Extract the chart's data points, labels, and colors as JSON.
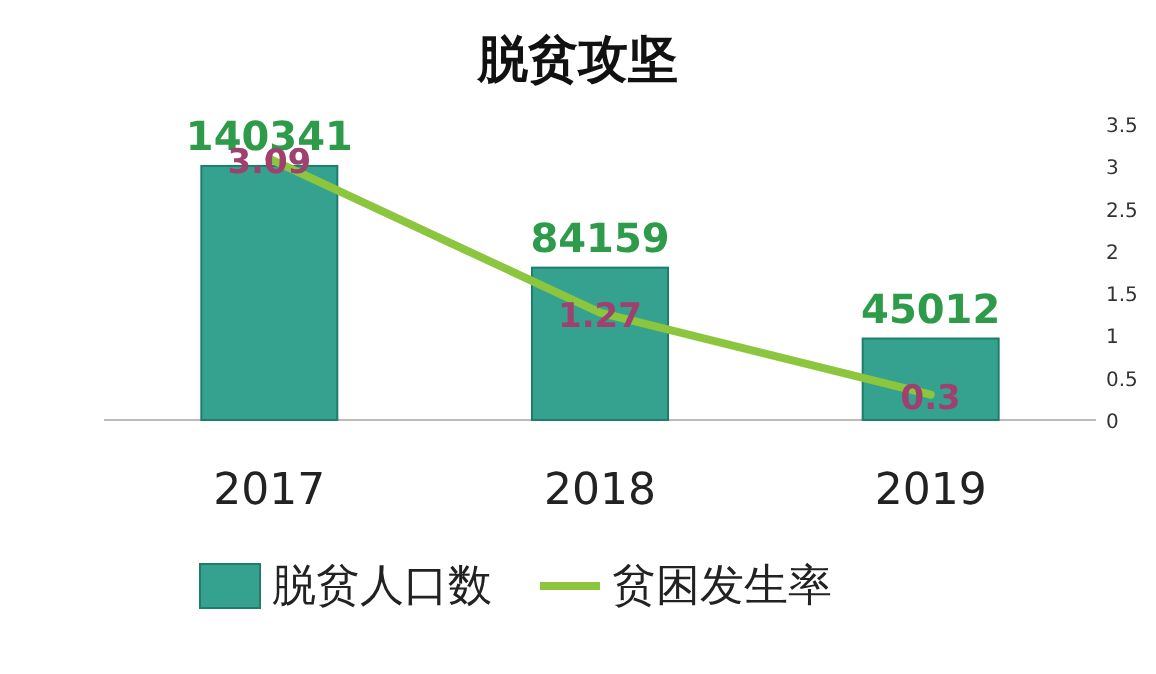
{
  "chart_data": {
    "type": "bar",
    "title": "脱贫攻坚",
    "categories": [
      "2017",
      "2018",
      "2019"
    ],
    "series": [
      {
        "name": "脱贫人口数",
        "color": "#35a28f",
        "values": [
          140341,
          84159,
          45012
        ]
      },
      {
        "name": "贫困发生率",
        "type": "line",
        "axis": "y2",
        "color": "#8cc63f",
        "values": [
          3.09,
          1.27,
          0.3
        ]
      }
    ],
    "y2lim": [
      0,
      3.5
    ],
    "y2ticks": [
      0,
      0.5,
      1,
      1.5,
      2,
      2.5,
      3,
      3.5
    ],
    "data_labels": true,
    "legend": "bottom",
    "grid": false
  }
}
